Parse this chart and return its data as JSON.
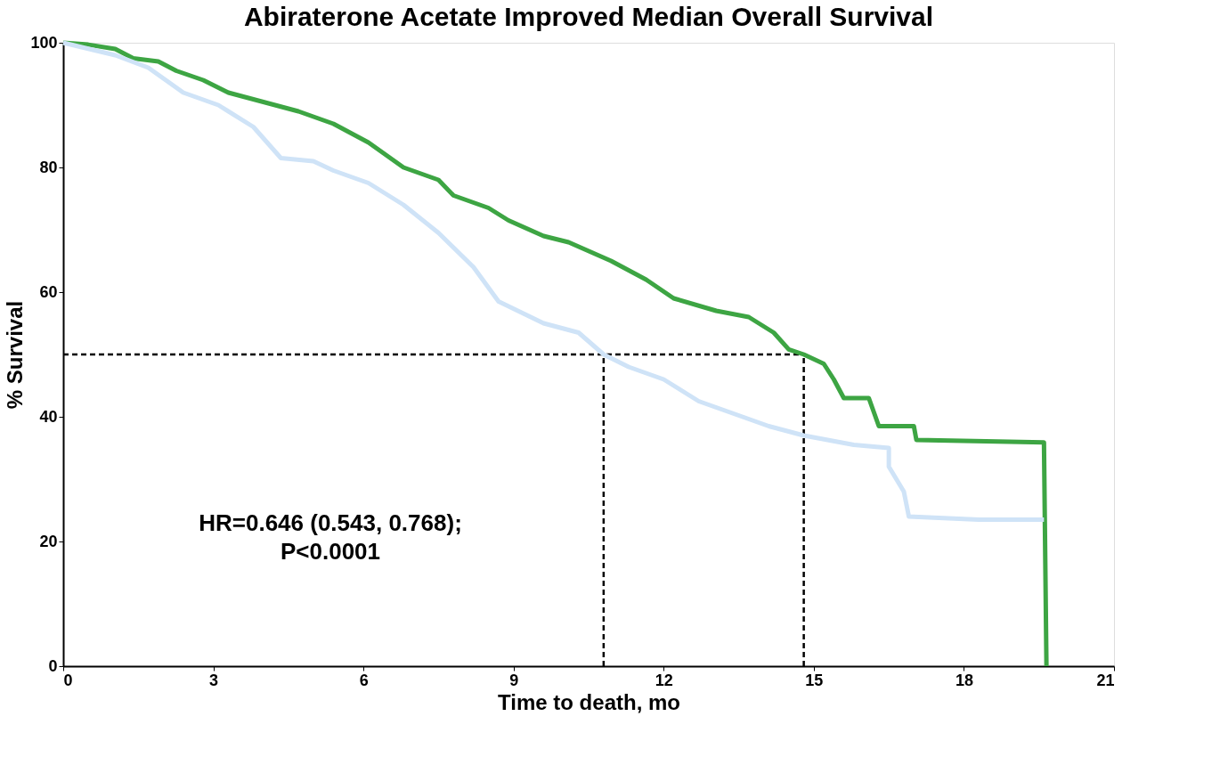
{
  "chart_data": {
    "type": "line",
    "title": "Abiraterone Acetate Improved Median Overall Survival",
    "xlabel": "Time to death, mo",
    "ylabel": "% Survival",
    "xlim": [
      0,
      21
    ],
    "xticks": [
      0,
      3,
      6,
      9,
      12,
      15,
      18,
      21
    ],
    "ylim": [
      0,
      100
    ],
    "yticks": [
      0,
      20,
      40,
      60,
      80,
      100
    ],
    "grid": false,
    "line_style": "solid",
    "series": [
      {
        "color": "#3da543",
        "x": [
          0,
          0.5,
          1.04,
          1.4,
          1.9,
          2.26,
          2.8,
          3.3,
          4,
          4.7,
          5.4,
          6.1,
          6.8,
          7.5,
          7.8,
          8.5,
          8.9,
          9.6,
          10.1,
          10.95,
          11.65,
          12.2,
          13.05,
          13.7,
          14.2,
          14.5,
          14.8,
          15.2,
          15.4,
          15.6,
          16.1,
          16.3,
          17,
          17.05,
          19.6,
          19.65
        ],
        "values": [
          100,
          99.7,
          99,
          97.5,
          97,
          95.5,
          94,
          92,
          90.5,
          89,
          87,
          84,
          80,
          78,
          75.5,
          73.5,
          71.5,
          69,
          68,
          65,
          62,
          59,
          57,
          56,
          53.5,
          50.8,
          50,
          48.5,
          46,
          43,
          43,
          38.5,
          38.5,
          36.3,
          35.9,
          0
        ]
      },
      {
        "color": "#cfe3f7",
        "x": [
          0,
          1.04,
          1.7,
          2.4,
          3.1,
          3.8,
          4.35,
          5,
          5.4,
          6.1,
          6.8,
          7.5,
          8.2,
          8.7,
          9.6,
          10.3,
          10.8,
          11.3,
          12,
          12.7,
          13.4,
          14.1,
          14.8,
          15.8,
          16.5,
          16.5,
          16.8,
          16.9,
          18.3,
          19.6
        ],
        "values": [
          100,
          98,
          96,
          92,
          90,
          86.5,
          81.5,
          81,
          79.5,
          77.5,
          74,
          69.5,
          64,
          58.5,
          55,
          53.5,
          50,
          48,
          46,
          42.5,
          40.5,
          38.5,
          37,
          35.5,
          35,
          32,
          28,
          24,
          23.5,
          23.5
        ]
      }
    ],
    "ref_lines": [
      {
        "axis": "y",
        "value": 50,
        "color": "#000000",
        "line_style": "dashed"
      },
      {
        "axis": "x",
        "value": 10.8,
        "color": "#000000",
        "line_style": "dashed"
      },
      {
        "axis": "x",
        "value": 14.8,
        "color": "#000000",
        "line_style": "dashed"
      }
    ],
    "annotations": [
      "HR=0.646 (0.543, 0.768);",
      "P<0.0001"
    ]
  }
}
